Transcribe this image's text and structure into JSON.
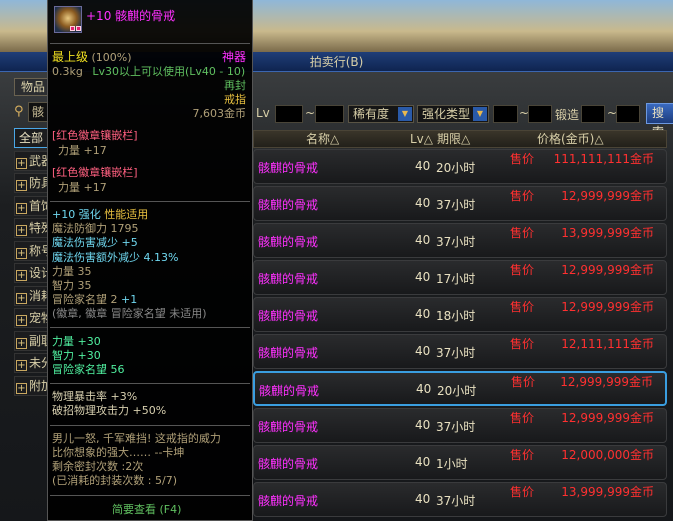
{
  "window": {
    "title": "拍卖行(B)"
  },
  "left": {
    "tab": "物品",
    "search_value": "骸",
    "categories": [
      {
        "label": "全部",
        "selected": true
      },
      {
        "label": "武器"
      },
      {
        "label": "防具"
      },
      {
        "label": "首饰"
      },
      {
        "label": "特殊"
      },
      {
        "label": "称号"
      },
      {
        "label": "设计"
      },
      {
        "label": "消耗"
      },
      {
        "label": "宠物"
      },
      {
        "label": "副职"
      },
      {
        "label": "未分"
      },
      {
        "label": "附加"
      }
    ]
  },
  "filters": {
    "lv_label": "Lv",
    "tilde": "~",
    "rarity": "稀有度",
    "enhance_type": "强化类型",
    "forge_label": "锻造",
    "search_button": "搜索"
  },
  "columns": {
    "name": "名称△",
    "lv": "Lv△",
    "period": "期限△",
    "price": "价格(金币)△"
  },
  "rows": [
    {
      "name": "骸麒的骨戒",
      "lv": "40",
      "period": "20小时",
      "sale": "售价",
      "price": "111,111,111金币"
    },
    {
      "name": "骸麒的骨戒",
      "lv": "40",
      "period": "37小时",
      "sale": "售价",
      "price": "12,999,999金币"
    },
    {
      "name": "骸麒的骨戒",
      "lv": "40",
      "period": "37小时",
      "sale": "售价",
      "price": "13,999,999金币"
    },
    {
      "name": "骸麒的骨戒",
      "lv": "40",
      "period": "17小时",
      "sale": "售价",
      "price": "12,999,999金币"
    },
    {
      "name": "骸麒的骨戒",
      "lv": "40",
      "period": "18小时",
      "sale": "售价",
      "price": "12,999,999金币"
    },
    {
      "name": "骸麒的骨戒",
      "lv": "40",
      "period": "37小时",
      "sale": "售价",
      "price": "12,111,111金币"
    },
    {
      "name": "骸麒的骨戒",
      "lv": "40",
      "period": "20小时",
      "sale": "售价",
      "price": "12,999,999金币",
      "highlighted": true
    },
    {
      "name": "骸麒的骨戒",
      "lv": "40",
      "period": "37小时",
      "sale": "售价",
      "price": "12,999,999金币"
    },
    {
      "name": "骸麒的骨戒",
      "lv": "40",
      "period": "1小时",
      "sale": "售价",
      "price": "12,000,000金币"
    },
    {
      "name": "骸麒的骨戒",
      "lv": "40",
      "period": "37小时",
      "sale": "售价",
      "price": "13,999,999金币"
    }
  ],
  "tooltip": {
    "title": "+10 骸麒的骨戒",
    "grade": "最上级",
    "grade_pct": "(100%)",
    "rarity": "神器",
    "weight": "0.3kg",
    "req": "Lv30以上可以使用(Lv40 - 10)",
    "reseal": "再封",
    "type": "戒指",
    "price": "7,603金币",
    "slot1": "[红色徽章镶嵌栏]",
    "slot1_stat": "力量",
    "slot1_val": "+17",
    "slot2": "[红色徽章镶嵌栏]",
    "slot2_stat": "力量",
    "slot2_val": "+17",
    "enh": "+10 强化",
    "enh_note": "性能适用",
    "mdef": "魔法防御力 1795",
    "mdr": "魔法伤害减少 +5",
    "mdr2": "魔法伤害额外减少 4.13%",
    "str": "力量 35",
    "int": "智力 35",
    "fame": "冒险家名望 2",
    "fame_bonus": "+1",
    "emblem_note": "(徽章, 徽章 冒险家名望 未适用)",
    "b_str": "力量 +30",
    "b_int": "智力 +30",
    "b_fame": "冒险家名望 56",
    "crit": "物理暴击率 +3%",
    "counter": "破招物理攻击力 +50%",
    "flavor1": "男儿一怒, 千军难挡! 这戒指的威力",
    "flavor2": "比你想象的强大……   --卡坤",
    "seal_left": "剩余密封次数 :2次",
    "seal_used": "(已消耗的封装次数 : 5/7)",
    "brief": "简要查看 (F4)"
  }
}
